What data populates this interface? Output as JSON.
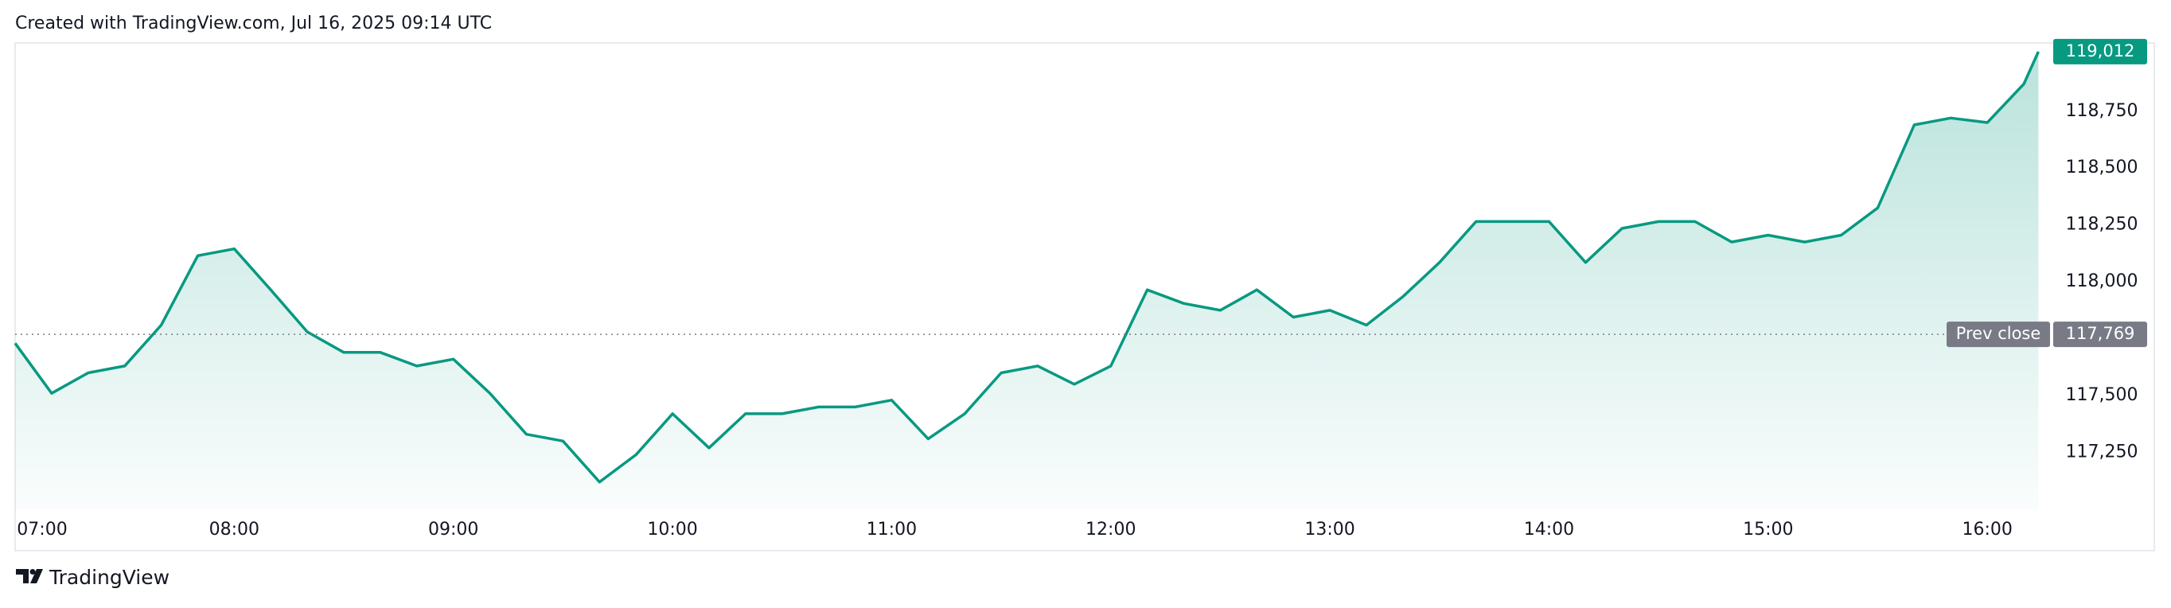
{
  "header": "Created with TradingView.com, Jul 16, 2025 09:14 UTC",
  "footer": "TradingView",
  "chart_data": {
    "type": "line",
    "x": [
      "07:00",
      "07:10",
      "07:20",
      "07:30",
      "07:40",
      "07:50",
      "08:00",
      "08:10",
      "08:20",
      "08:30",
      "08:40",
      "08:50",
      "09:00",
      "09:10",
      "09:20",
      "09:30",
      "09:40",
      "09:50",
      "10:00",
      "10:10",
      "10:20",
      "10:30",
      "10:40",
      "10:50",
      "11:00",
      "11:10",
      "11:20",
      "11:30",
      "11:40",
      "11:50",
      "12:00",
      "12:10",
      "12:20",
      "12:30",
      "12:40",
      "12:50",
      "13:00",
      "13:10",
      "13:20",
      "13:30",
      "13:40",
      "13:50",
      "14:00",
      "14:10",
      "14:20",
      "14:30",
      "14:40",
      "14:50",
      "15:00",
      "15:10",
      "15:20",
      "15:30",
      "15:40",
      "15:50",
      "16:00",
      "16:10",
      "16:14"
    ],
    "series": [
      {
        "color": "#089981",
        "values": [
          117730,
          117510,
          117600,
          117630,
          117810,
          118115,
          118145,
          117965,
          117780,
          117690,
          117690,
          117630,
          117660,
          117510,
          117330,
          117300,
          117120,
          117240,
          117420,
          117270,
          117420,
          117420,
          117450,
          117450,
          117480,
          117310,
          117420,
          117600,
          117630,
          117550,
          117630,
          117965,
          117905,
          117875,
          117965,
          117845,
          117875,
          117810,
          117935,
          118085,
          118265,
          118265,
          118265,
          118085,
          118235,
          118265,
          118265,
          118175,
          118205,
          118175,
          118205,
          118325,
          118690,
          118720,
          118700,
          118870,
          119012
        ]
      }
    ],
    "xlim": [
      "07:00",
      "16:15"
    ],
    "xticks": [
      "07:00",
      "08:00",
      "09:00",
      "10:00",
      "11:00",
      "12:00",
      "13:00",
      "14:00",
      "15:00",
      "16:00"
    ],
    "ylim": [
      117000,
      119050
    ],
    "yticks": [
      {
        "value": 117250,
        "label": "117,250"
      },
      {
        "value": 117500,
        "label": "117,500"
      },
      {
        "value": 118000,
        "label": "118,000"
      },
      {
        "value": 118250,
        "label": "118,250"
      },
      {
        "value": 118500,
        "label": "118,500"
      },
      {
        "value": 118750,
        "label": "118,750"
      }
    ],
    "price_labels": [
      {
        "value": 119012,
        "label": "119,012",
        "color": "#089981"
      },
      {
        "value": 117769,
        "label": "117,769",
        "name": "Prev close",
        "color": "#787b86"
      }
    ]
  }
}
